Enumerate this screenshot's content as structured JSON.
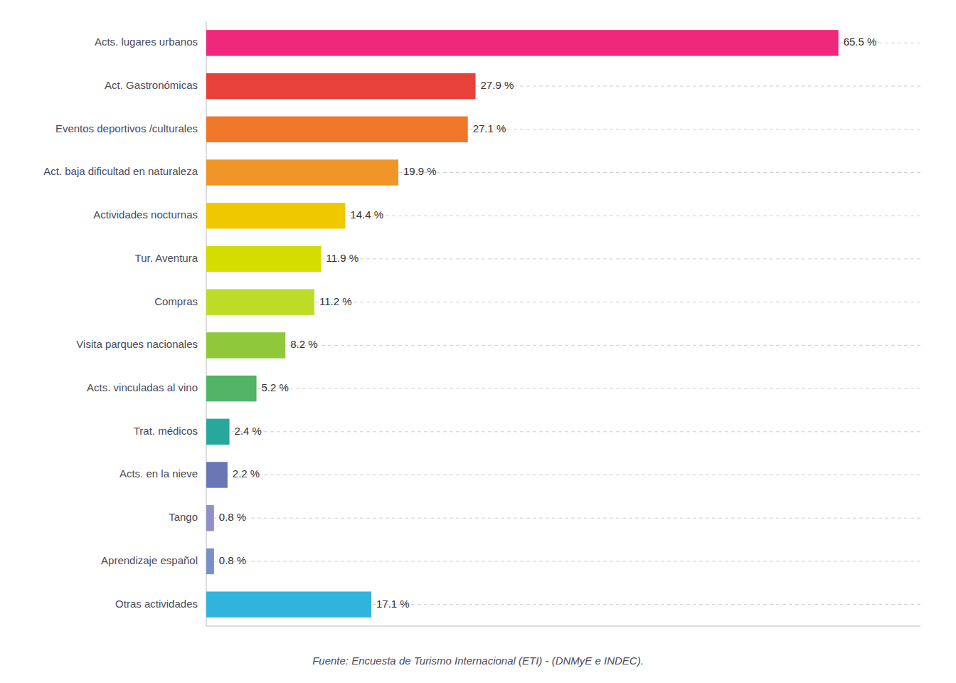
{
  "chart_data": {
    "type": "bar",
    "orientation": "horizontal",
    "categories": [
      "Acts. lugares urbanos",
      "Act. Gastronómicas",
      "Eventos deportivos /culturales",
      "Act. baja dificultad en naturaleza",
      "Actividades nocturnas",
      "Tur. Aventura",
      "Compras",
      "Visita parques nacionales",
      "Acts. vinculadas al vino",
      "Trat. médicos",
      "Acts. en la nieve",
      "Tango",
      "Aprendizaje español",
      "Otras actividades"
    ],
    "values": [
      65.5,
      27.9,
      27.1,
      19.9,
      14.4,
      11.9,
      11.2,
      8.2,
      5.2,
      2.4,
      2.2,
      0.8,
      0.8,
      17.1
    ],
    "value_labels": [
      "65.5 %",
      "27.9 %",
      "27.1 %",
      "19.9 %",
      "14.4 %",
      "11.9 %",
      "11.2 %",
      "8.2 %",
      "5.2 %",
      "2.4 %",
      "2.2 %",
      "0.8 %",
      "0.8 %",
      "17.1 %"
    ],
    "colors": [
      "#F0287C",
      "#E8403A",
      "#F07828",
      "#F09628",
      "#F0C800",
      "#D4DC00",
      "#BCDC28",
      "#90C83C",
      "#50B464",
      "#28A89C",
      "#6878B4",
      "#9090C8",
      "#7890C8",
      "#30B4DC"
    ],
    "xlim": [
      0,
      74
    ],
    "grid": true,
    "data_labels": true,
    "tick_labels": "y",
    "annotations": [
      "Fuente: Encuesta de Turismo Internacional (ETI) - (DNMyE e INDEC)."
    ]
  }
}
